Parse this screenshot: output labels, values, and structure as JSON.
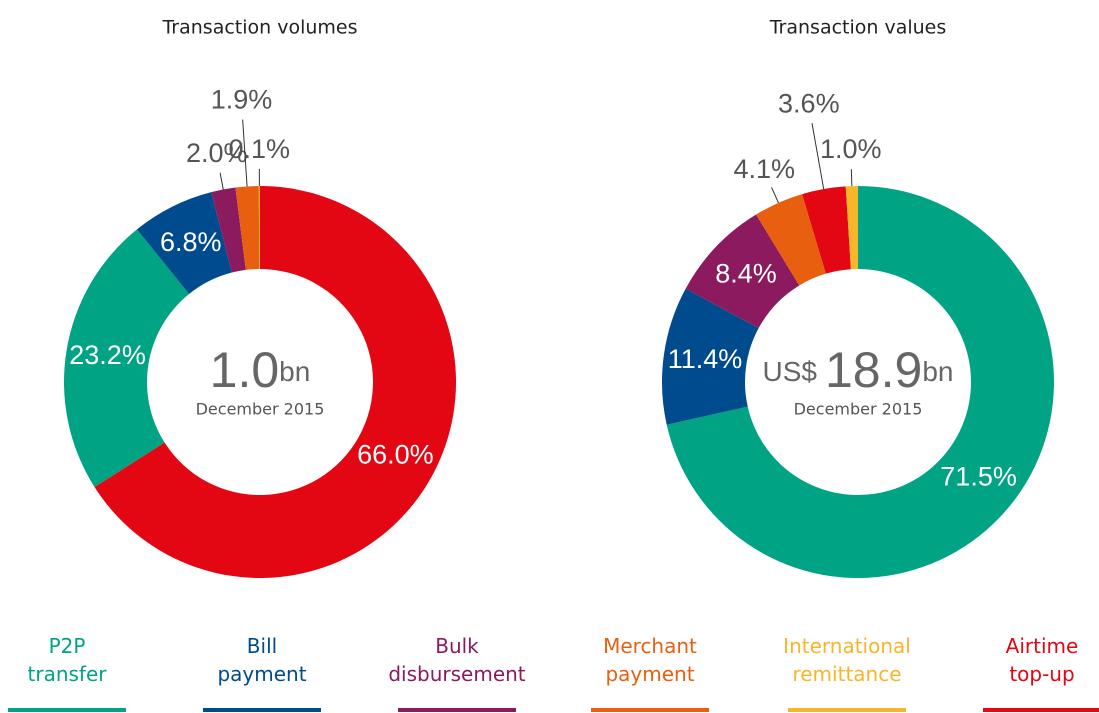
{
  "chart_data": [
    {
      "type": "pie",
      "title": "Transaction volumes",
      "center_value": "1.0",
      "center_unit": "bn",
      "center_caption": "December 2015",
      "categories": [
        "Airtime top-up",
        "P2P transfer",
        "Bill payment",
        "Bulk disbursement",
        "Merchant payment",
        "International remittance"
      ],
      "values": [
        66.0,
        23.2,
        6.8,
        2.0,
        1.9,
        0.1
      ],
      "value_labels": [
        "66.0%",
        "23.2%",
        "6.8%",
        "2.0%",
        "1.9%",
        "0.1%"
      ]
    },
    {
      "type": "pie",
      "title": "Transaction values",
      "center_prefix": "US$",
      "center_value": "18.9",
      "center_unit": "bn",
      "center_caption": "December 2015",
      "categories": [
        "P2P transfer",
        "Bill payment",
        "Bulk disbursement",
        "Merchant payment",
        "Airtime top-up",
        "International remittance"
      ],
      "values": [
        71.5,
        11.4,
        8.4,
        4.1,
        3.6,
        1.0
      ],
      "value_labels": [
        "71.5%",
        "11.4%",
        "8.4%",
        "4.1%",
        "3.6%",
        "1.0%"
      ]
    }
  ],
  "legend": {
    "names": [
      "P2P transfer",
      "Bill payment",
      "Bulk disbursement",
      "Merchant payment",
      "International remittance",
      "Airtime top-up"
    ],
    "colors": [
      "#00a383",
      "#004b8d",
      "#8b1a5e",
      "#e8600f",
      "#f7b52a",
      "#e30613"
    ]
  }
}
